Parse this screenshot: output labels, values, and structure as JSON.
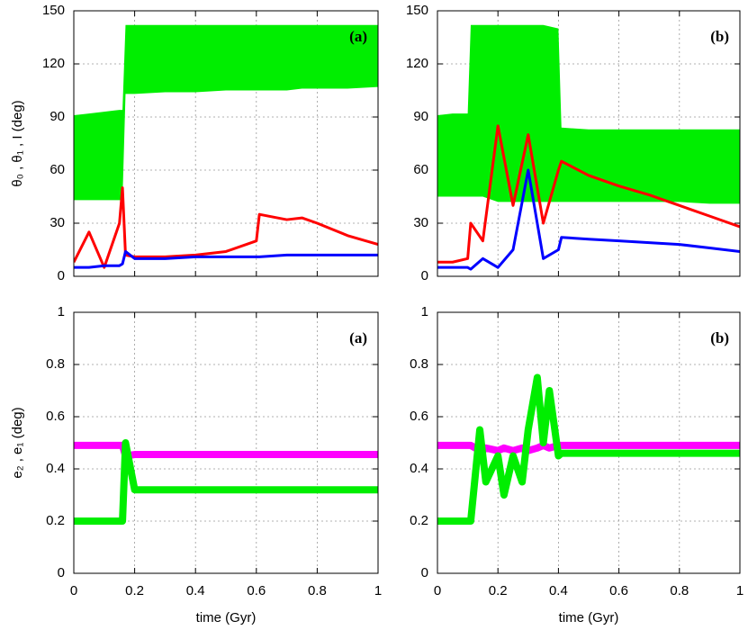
{
  "chart_data": [
    {
      "type": "line",
      "label": "(a)",
      "ylabel": "θ₀ , θ₁ , I (deg)",
      "grid": true,
      "xtick_labels": false,
      "xlim": [
        0,
        1
      ],
      "xticks": [
        0,
        0.2,
        0.4,
        0.6,
        0.8,
        1
      ],
      "ylim": [
        0,
        150
      ],
      "yticks": [
        0,
        30,
        60,
        90,
        120,
        150
      ],
      "x": [
        0,
        0.05,
        0.1,
        0.15,
        0.16,
        0.17,
        0.2,
        0.3,
        0.4,
        0.5,
        0.6,
        0.61,
        0.7,
        0.75,
        0.8,
        0.9,
        1
      ],
      "series": [
        {
          "color": "#00ee00",
          "low": [
            43,
            43,
            43,
            43,
            43,
            103,
            103,
            104,
            104,
            105,
            105,
            105,
            105,
            106,
            106,
            106,
            107
          ],
          "high": [
            91,
            92,
            93,
            94,
            94,
            142,
            142,
            142,
            142,
            142,
            142,
            142,
            142,
            142,
            142,
            142,
            142
          ]
        },
        {
          "color": "#ff0000",
          "values": [
            8,
            25,
            5,
            30,
            50,
            12,
            11,
            11,
            12,
            14,
            20,
            35,
            32,
            33,
            30,
            23,
            18
          ]
        },
        {
          "color": "#0000ff",
          "values": [
            5,
            5,
            6,
            6,
            7,
            14,
            10,
            10,
            11,
            11,
            11,
            11,
            12,
            12,
            12,
            12,
            12
          ]
        }
      ]
    },
    {
      "type": "line",
      "label": "(b)",
      "grid": true,
      "xtick_labels": false,
      "xlim": [
        0,
        1
      ],
      "xticks": [
        0,
        0.2,
        0.4,
        0.6,
        0.8,
        1
      ],
      "ylim": [
        0,
        150
      ],
      "yticks": [
        0,
        30,
        60,
        90,
        120,
        150
      ],
      "x": [
        0,
        0.05,
        0.1,
        0.11,
        0.15,
        0.2,
        0.25,
        0.3,
        0.35,
        0.4,
        0.41,
        0.5,
        0.6,
        0.7,
        0.8,
        0.9,
        1
      ],
      "series": [
        {
          "color": "#00ee00",
          "low": [
            45,
            45,
            45,
            45,
            45,
            42,
            42,
            42,
            42,
            42,
            42,
            42,
            42,
            42,
            42,
            41,
            41
          ],
          "high": [
            91,
            92,
            92,
            142,
            142,
            142,
            142,
            142,
            142,
            140,
            84,
            83,
            83,
            83,
            83,
            83,
            83
          ]
        },
        {
          "color": "#ff0000",
          "values": [
            8,
            8,
            10,
            30,
            20,
            85,
            40,
            80,
            30,
            60,
            65,
            57,
            51,
            46,
            40,
            34,
            28
          ]
        },
        {
          "color": "#0000ff",
          "values": [
            5,
            5,
            5,
            4,
            10,
            5,
            15,
            60,
            10,
            15,
            22,
            21,
            20,
            19,
            18,
            16,
            14
          ]
        }
      ]
    },
    {
      "type": "line",
      "label": "(a)",
      "ylabel": "e₂ , e₁ (deg)",
      "xlabel": "time (Gyr)",
      "grid": true,
      "xtick_labels": true,
      "xlim": [
        0,
        1
      ],
      "xticks": [
        0,
        0.2,
        0.4,
        0.6,
        0.8,
        1
      ],
      "ylim": [
        0,
        1
      ],
      "yticks": [
        0,
        0.2,
        0.4,
        0.6,
        0.8,
        1
      ],
      "x": [
        0,
        0.05,
        0.1,
        0.15,
        0.16,
        0.17,
        0.2,
        0.4,
        0.6,
        0.8,
        1
      ],
      "series": [
        {
          "color": "#ff00ff",
          "values": [
            0.49,
            0.49,
            0.49,
            0.49,
            0.49,
            0.45,
            0.455,
            0.455,
            0.455,
            0.455,
            0.455
          ]
        },
        {
          "color": "#00ee00",
          "values": [
            0.2,
            0.2,
            0.2,
            0.2,
            0.2,
            0.5,
            0.32,
            0.32,
            0.32,
            0.32,
            0.32
          ]
        }
      ]
    },
    {
      "type": "line",
      "label": "(b)",
      "xlabel": "time (Gyr)",
      "grid": true,
      "xtick_labels": true,
      "xlim": [
        0,
        1
      ],
      "xticks": [
        0,
        0.2,
        0.4,
        0.6,
        0.8,
        1
      ],
      "ylim": [
        0,
        1
      ],
      "yticks": [
        0,
        0.2,
        0.4,
        0.6,
        0.8,
        1
      ],
      "x": [
        0,
        0.05,
        0.1,
        0.11,
        0.14,
        0.16,
        0.2,
        0.22,
        0.25,
        0.28,
        0.3,
        0.33,
        0.35,
        0.37,
        0.4,
        0.41,
        0.6,
        0.8,
        1
      ],
      "series": [
        {
          "color": "#ff00ff",
          "values": [
            0.49,
            0.49,
            0.49,
            0.49,
            0.47,
            0.48,
            0.47,
            0.48,
            0.47,
            0.48,
            0.47,
            0.48,
            0.49,
            0.48,
            0.49,
            0.49,
            0.49,
            0.49,
            0.49
          ]
        },
        {
          "color": "#00ee00",
          "values": [
            0.2,
            0.2,
            0.2,
            0.2,
            0.55,
            0.35,
            0.45,
            0.3,
            0.45,
            0.35,
            0.55,
            0.75,
            0.5,
            0.7,
            0.45,
            0.46,
            0.46,
            0.46,
            0.46
          ]
        }
      ]
    }
  ]
}
